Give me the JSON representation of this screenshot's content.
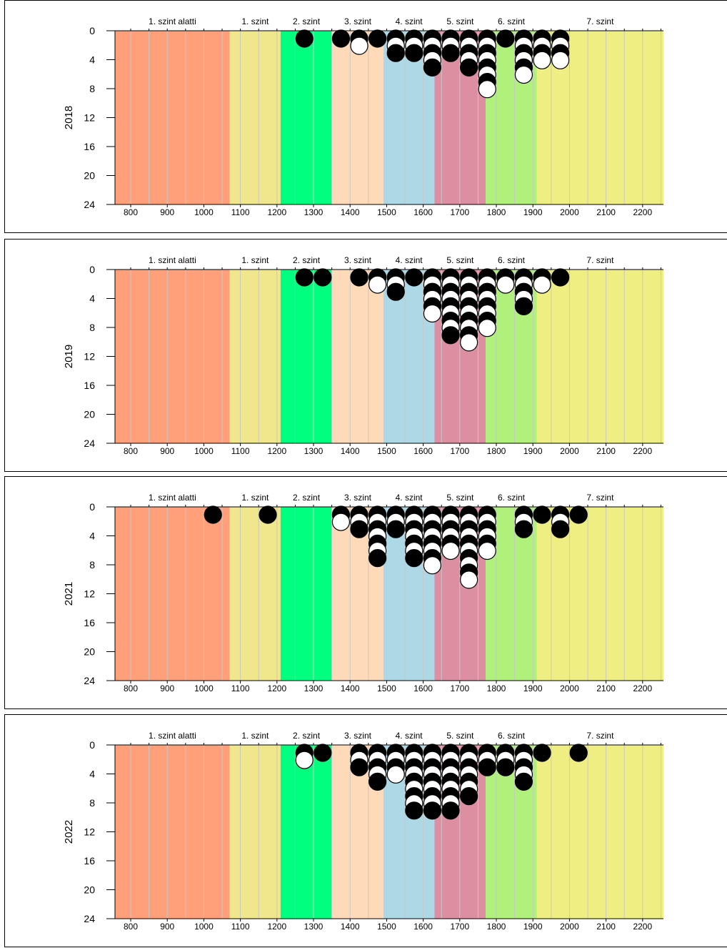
{
  "chart_data": [
    {
      "type": "scatter",
      "year_label": "2018",
      "x_ticks": [
        800,
        900,
        1000,
        1100,
        1200,
        1300,
        1400,
        1500,
        1600,
        1700,
        1800,
        1900,
        2000,
        2100,
        2200
      ],
      "y_ticks": [
        0,
        4,
        8,
        12,
        16,
        20,
        24
      ],
      "xlim": [
        757,
        2257
      ],
      "ylim": [
        0,
        24
      ],
      "levels": [
        {
          "label": "1. szint alatti",
          "from": 757,
          "to": 1071,
          "color": "#FFA07A"
        },
        {
          "label": "1. szint",
          "from": 1071,
          "to": 1210,
          "color": "#F0E68C"
        },
        {
          "label": "2. szint",
          "from": 1210,
          "to": 1351,
          "color": "#00FF7F"
        },
        {
          "label": "3. szint",
          "from": 1351,
          "to": 1491,
          "color": "#FFDAB9"
        },
        {
          "label": "4. szint",
          "from": 1491,
          "to": 1631,
          "color": "#ADD8E6"
        },
        {
          "label": "5. szint",
          "from": 1631,
          "to": 1771,
          "color": "#DB8FA0"
        },
        {
          "label": "6. szint",
          "from": 1771,
          "to": 1911,
          "color": "#B0F17C"
        },
        {
          "label": "7. szint",
          "from": 1911,
          "to": 2257,
          "color": "#EEEE82"
        }
      ],
      "stacks": [
        {
          "x": 1275,
          "counts": [
            1
          ]
        },
        {
          "x": 1375,
          "counts": [
            1
          ]
        },
        {
          "x": 1425,
          "counts": [
            1,
            1
          ]
        },
        {
          "x": 1475,
          "counts": [
            1
          ]
        },
        {
          "x": 1525,
          "counts": [
            3
          ]
        },
        {
          "x": 1575,
          "counts": [
            3
          ]
        },
        {
          "x": 1625,
          "counts": [
            5
          ]
        },
        {
          "x": 1675,
          "counts": [
            3
          ]
        },
        {
          "x": 1725,
          "counts": [
            5
          ]
        },
        {
          "x": 1775,
          "counts": [
            8
          ]
        },
        {
          "x": 1825,
          "counts": [
            1
          ]
        },
        {
          "x": 1875,
          "counts": [
            6
          ]
        },
        {
          "x": 1925,
          "counts": [
            4
          ]
        },
        {
          "x": 1975,
          "counts": [
            4
          ]
        }
      ]
    },
    {
      "type": "scatter",
      "year_label": "2019",
      "x_ticks": [
        800,
        900,
        1000,
        1100,
        1200,
        1300,
        1400,
        1500,
        1600,
        1700,
        1800,
        1900,
        2000,
        2100,
        2200
      ],
      "y_ticks": [
        0,
        4,
        8,
        12,
        16,
        20,
        24
      ],
      "xlim": [
        757,
        2257
      ],
      "ylim": [
        0,
        24
      ],
      "levels": [
        {
          "label": "1. szint alatti",
          "from": 757,
          "to": 1071,
          "color": "#FFA07A"
        },
        {
          "label": "1. szint",
          "from": 1071,
          "to": 1210,
          "color": "#F0E68C"
        },
        {
          "label": "2. szint",
          "from": 1210,
          "to": 1351,
          "color": "#00FF7F"
        },
        {
          "label": "3. szint",
          "from": 1351,
          "to": 1491,
          "color": "#FFDAB9"
        },
        {
          "label": "4. szint",
          "from": 1491,
          "to": 1631,
          "color": "#ADD8E6"
        },
        {
          "label": "5. szint",
          "from": 1631,
          "to": 1771,
          "color": "#DB8FA0"
        },
        {
          "label": "6. szint",
          "from": 1771,
          "to": 1911,
          "color": "#B0F17C"
        },
        {
          "label": "7. szint",
          "from": 1911,
          "to": 2257,
          "color": "#EEEE82"
        }
      ],
      "stacks": [
        {
          "x": 1275,
          "counts": [
            1
          ]
        },
        {
          "x": 1325,
          "counts": [
            1
          ]
        },
        {
          "x": 1425,
          "counts": [
            1
          ]
        },
        {
          "x": 1475,
          "counts": [
            2
          ]
        },
        {
          "x": 1525,
          "counts": [
            3
          ]
        },
        {
          "x": 1575,
          "counts": [
            1
          ]
        },
        {
          "x": 1625,
          "counts": [
            6
          ]
        },
        {
          "x": 1675,
          "counts": [
            9
          ]
        },
        {
          "x": 1725,
          "counts": [
            10
          ]
        },
        {
          "x": 1775,
          "counts": [
            8
          ]
        },
        {
          "x": 1825,
          "counts": [
            2
          ]
        },
        {
          "x": 1875,
          "counts": [
            5
          ]
        },
        {
          "x": 1925,
          "counts": [
            2
          ]
        },
        {
          "x": 1975,
          "counts": [
            1
          ]
        }
      ]
    },
    {
      "type": "scatter",
      "year_label": "2021",
      "x_ticks": [
        800,
        900,
        1000,
        1100,
        1200,
        1300,
        1400,
        1500,
        1600,
        1700,
        1800,
        1900,
        2000,
        2100,
        2200
      ],
      "y_ticks": [
        0,
        4,
        8,
        12,
        16,
        20,
        24
      ],
      "xlim": [
        757,
        2257
      ],
      "ylim": [
        0,
        24
      ],
      "levels": [
        {
          "label": "1. szint alatti",
          "from": 757,
          "to": 1071,
          "color": "#FFA07A"
        },
        {
          "label": "1. szint",
          "from": 1071,
          "to": 1210,
          "color": "#F0E68C"
        },
        {
          "label": "2. szint",
          "from": 1210,
          "to": 1351,
          "color": "#00FF7F"
        },
        {
          "label": "3. szint",
          "from": 1351,
          "to": 1491,
          "color": "#FFDAB9"
        },
        {
          "label": "4. szint",
          "from": 1491,
          "to": 1631,
          "color": "#ADD8E6"
        },
        {
          "label": "5. szint",
          "from": 1631,
          "to": 1771,
          "color": "#DB8FA0"
        },
        {
          "label": "6. szint",
          "from": 1771,
          "to": 1911,
          "color": "#B0F17C"
        },
        {
          "label": "7. szint",
          "from": 1911,
          "to": 2257,
          "color": "#EEEE82"
        }
      ],
      "stacks": [
        {
          "x": 1025,
          "counts": [
            1
          ]
        },
        {
          "x": 1175,
          "counts": [
            1
          ]
        },
        {
          "x": 1375,
          "counts": [
            2
          ]
        },
        {
          "x": 1425,
          "counts": [
            3
          ]
        },
        {
          "x": 1475,
          "counts": [
            7
          ]
        },
        {
          "x": 1525,
          "counts": [
            3
          ]
        },
        {
          "x": 1575,
          "counts": [
            7
          ]
        },
        {
          "x": 1625,
          "counts": [
            8
          ]
        },
        {
          "x": 1675,
          "counts": [
            6
          ]
        },
        {
          "x": 1725,
          "counts": [
            10
          ]
        },
        {
          "x": 1775,
          "counts": [
            6
          ]
        },
        {
          "x": 1875,
          "counts": [
            3
          ]
        },
        {
          "x": 1925,
          "counts": [
            1
          ]
        },
        {
          "x": 1975,
          "counts": [
            3
          ]
        },
        {
          "x": 2025,
          "counts": [
            1
          ]
        }
      ]
    },
    {
      "type": "scatter",
      "year_label": "2022",
      "x_ticks": [
        800,
        900,
        1000,
        1100,
        1200,
        1300,
        1400,
        1500,
        1600,
        1700,
        1800,
        1900,
        2000,
        2100,
        2200
      ],
      "y_ticks": [
        0,
        4,
        8,
        12,
        16,
        20,
        24
      ],
      "xlim": [
        757,
        2257
      ],
      "ylim": [
        0,
        24
      ],
      "levels": [
        {
          "label": "1. szint alatti",
          "from": 757,
          "to": 1071,
          "color": "#FFA07A"
        },
        {
          "label": "1. szint",
          "from": 1071,
          "to": 1210,
          "color": "#F0E68C"
        },
        {
          "label": "2. szint",
          "from": 1210,
          "to": 1351,
          "color": "#00FF7F"
        },
        {
          "label": "3. szint",
          "from": 1351,
          "to": 1491,
          "color": "#FFDAB9"
        },
        {
          "label": "4. szint",
          "from": 1491,
          "to": 1631,
          "color": "#ADD8E6"
        },
        {
          "label": "5. szint",
          "from": 1631,
          "to": 1771,
          "color": "#DB8FA0"
        },
        {
          "label": "6. szint",
          "from": 1771,
          "to": 1911,
          "color": "#B0F17C"
        },
        {
          "label": "7. szint",
          "from": 1911,
          "to": 2257,
          "color": "#EEEE82"
        }
      ],
      "stacks": [
        {
          "x": 1275,
          "counts": [
            2
          ]
        },
        {
          "x": 1325,
          "counts": [
            1
          ]
        },
        {
          "x": 1425,
          "counts": [
            3
          ]
        },
        {
          "x": 1475,
          "counts": [
            5
          ]
        },
        {
          "x": 1525,
          "counts": [
            4
          ]
        },
        {
          "x": 1575,
          "counts": [
            9
          ]
        },
        {
          "x": 1625,
          "counts": [
            9
          ]
        },
        {
          "x": 1675,
          "counts": [
            9
          ]
        },
        {
          "x": 1725,
          "counts": [
            7
          ]
        },
        {
          "x": 1775,
          "counts": [
            3
          ]
        },
        {
          "x": 1825,
          "counts": [
            3
          ]
        },
        {
          "x": 1875,
          "counts": [
            5
          ]
        },
        {
          "x": 1925,
          "counts": [
            1
          ]
        },
        {
          "x": 2025,
          "counts": [
            1
          ]
        }
      ]
    }
  ]
}
